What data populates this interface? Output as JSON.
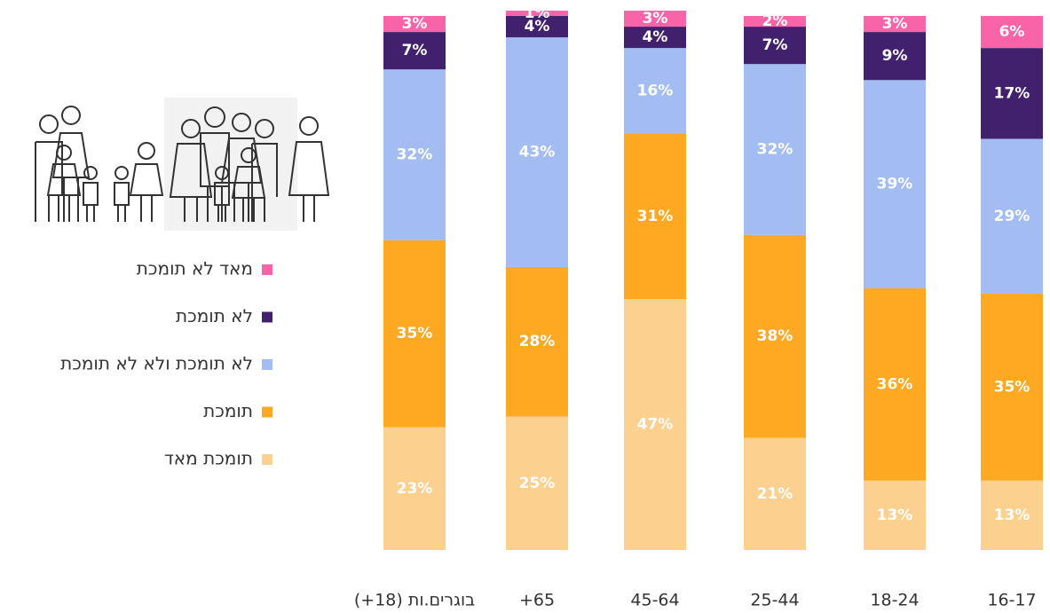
{
  "chart_data": {
    "type": "stacked_bar",
    "categories": [
      "בוגרים.ות (18+)",
      "65+",
      "45-64",
      "25-44",
      "18-24",
      "16-17"
    ],
    "series": [
      {
        "name": "תומכת מאד",
        "color": "#fcd08f",
        "values": [
          23,
          25,
          47,
          21,
          13,
          13
        ],
        "value_labels": [
          "23%",
          "25%",
          "47%",
          "21%",
          "13%",
          "13%"
        ]
      },
      {
        "name": "תומכת",
        "color": "#ffa922",
        "values": [
          35,
          28,
          31,
          38,
          36,
          35
        ],
        "value_labels": [
          "35%",
          "28%",
          "31%",
          "38%",
          "36%",
          "35%"
        ]
      },
      {
        "name": "לא תומכת ולא לא תומכת",
        "color": "#a3bdf2",
        "values": [
          32,
          43,
          16,
          32,
          39,
          29
        ],
        "value_labels": [
          "32%",
          "43%",
          "16%",
          "32%",
          "39%",
          "29%"
        ]
      },
      {
        "name": "לא תומכת",
        "color": "#41206e",
        "values": [
          7,
          4,
          4,
          7,
          9,
          17
        ],
        "value_labels": [
          "7%",
          "4%",
          "4%",
          "7%",
          "9%",
          "17%"
        ]
      },
      {
        "name": "מאד לא תומכת",
        "color": "#f964a8",
        "values": [
          3,
          1,
          3,
          2,
          3,
          6
        ],
        "value_labels": [
          "3%",
          "1%",
          "3%",
          "2%",
          "3%",
          "6%"
        ]
      }
    ],
    "ylim": [
      0,
      101
    ]
  }
}
